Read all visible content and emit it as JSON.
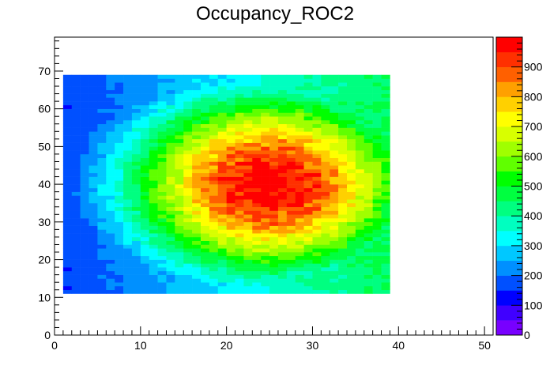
{
  "chart_data": {
    "type": "heatmap",
    "title": "Occupancy_ROC2",
    "xlabel": "",
    "ylabel": "",
    "xlim": [
      0,
      51
    ],
    "ylim": [
      0,
      79
    ],
    "zlim": [
      0,
      1000
    ],
    "x_ticks": [
      0,
      10,
      20,
      30,
      40,
      50
    ],
    "y_ticks": [
      0,
      10,
      20,
      30,
      40,
      50,
      60,
      70
    ],
    "z_ticks": [
      0,
      100,
      200,
      300,
      400,
      500,
      600,
      700,
      800,
      900
    ],
    "filled_x_range": [
      1,
      39
    ],
    "filled_y_range": [
      11,
      69
    ],
    "peak": {
      "x": 25,
      "y": 40,
      "value": 1000
    },
    "corner_values": {
      "bottom_left": 180,
      "top_left": 180,
      "bottom_right": 500,
      "top_right": 500
    },
    "palette": [
      "#7800ff",
      "#4000ff",
      "#0000ff",
      "#0050ff",
      "#0090ff",
      "#00c8ff",
      "#00ffff",
      "#00ffc0",
      "#00ff80",
      "#00ff40",
      "#00ff00",
      "#60ff00",
      "#a0ff00",
      "#d8ff00",
      "#ffff00",
      "#ffd000",
      "#ffa000",
      "#ff6000",
      "#ff3000",
      "#ff0000"
    ],
    "grid": false,
    "legend": "colorbar-right"
  }
}
